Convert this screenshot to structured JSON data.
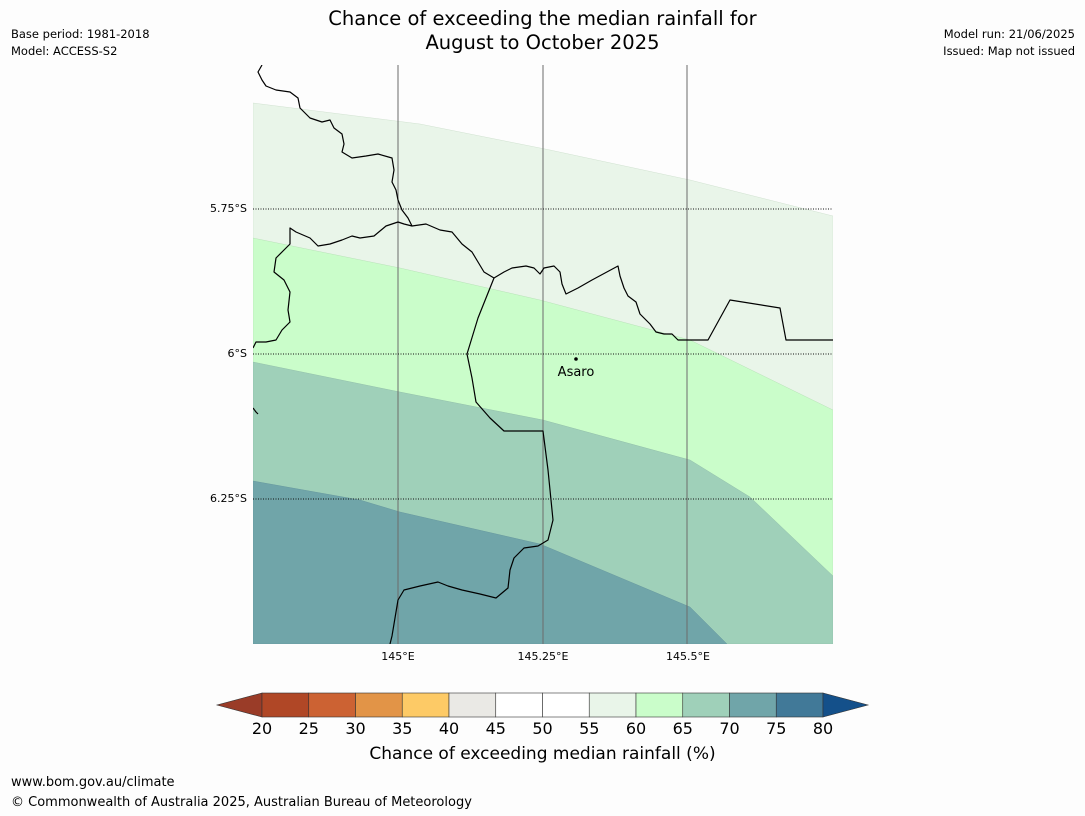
{
  "header": {
    "title_line1": "Chance of exceeding the median rainfall for",
    "title_line2": "August to October 2025",
    "base_period": "Base period: 1981-2018",
    "model": "Model: ACCESS-S2",
    "model_run": "Model run: 21/06/2025",
    "issued": "Issued: Map not issued"
  },
  "map": {
    "lat_labels": [
      "5.75°S",
      "6°S",
      "6.25°S"
    ],
    "lon_labels": [
      "145°E",
      "145.25°E",
      "145.5°E"
    ],
    "place_label": "Asaro"
  },
  "legend": {
    "ticks": [
      "20",
      "25",
      "30",
      "35",
      "40",
      "45",
      "50",
      "55",
      "60",
      "65",
      "70",
      "75",
      "80"
    ],
    "label": "Chance of exceeding median rainfall (%)",
    "colors": {
      "below_20": "#9a3c28",
      "20-25": "#b04726",
      "25-30": "#cc6233",
      "30-35": "#e29447",
      "35-40": "#fdca66",
      "40-45": "#eae9e5",
      "45-50": "#ffffff",
      "50-55": "#ffffff",
      "55-60": "#e9f5e9",
      "60-65": "#cafdca",
      "65-70": "#9fd0b9",
      "70-75": "#70a5a9",
      "75-80": "#417998",
      "above_80": "#14508a"
    }
  },
  "footer": {
    "url": "www.bom.gov.au/climate",
    "copyright": "© Commonwealth of Australia 2025, Australian Bureau of Meteorology"
  }
}
